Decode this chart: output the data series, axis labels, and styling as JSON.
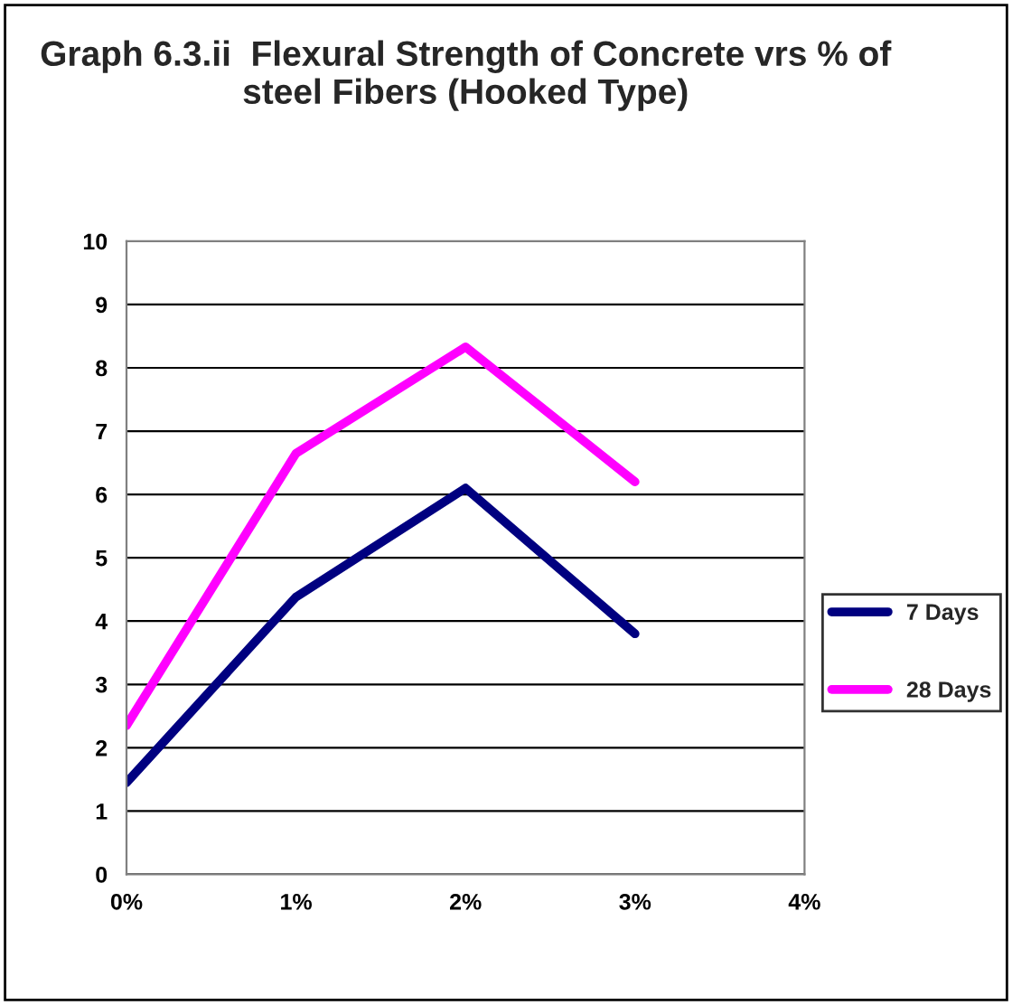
{
  "chart_data": {
    "type": "line",
    "title": "Graph 6.3.ii  Flexural Strength of Concrete vrs % of steel Fibers (Hooked Type)",
    "categories": [
      "0%",
      "1%",
      "2%",
      "3%",
      "4%"
    ],
    "series": [
      {
        "name": "7 Days",
        "color": "#000080",
        "values": [
          1.45,
          4.38,
          6.1,
          3.8,
          null
        ]
      },
      {
        "name": "28 Days",
        "color": "#ff00ff",
        "values": [
          2.35,
          6.65,
          8.33,
          6.2,
          null
        ]
      }
    ],
    "ylim": [
      0,
      10
    ],
    "yticks": [
      0,
      1,
      2,
      3,
      4,
      5,
      6,
      7,
      8,
      9,
      10
    ],
    "grid": "y",
    "legend": "right",
    "marker": "none",
    "line_style": "solid"
  }
}
